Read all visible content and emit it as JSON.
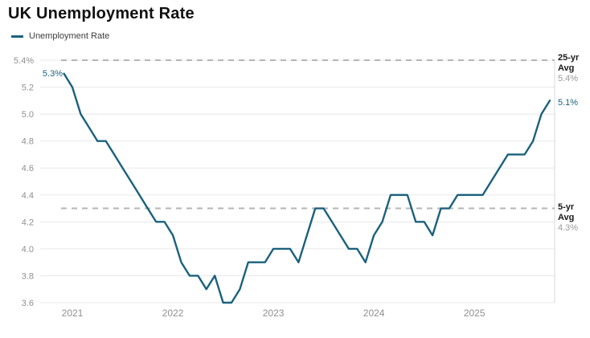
{
  "header": {
    "title": "UK Unemployment Rate"
  },
  "legend": {
    "label": "Unemployment Rate"
  },
  "colors": {
    "line": "#1a617e",
    "point_label": "#1a617e",
    "grid": "#e8e8e8",
    "dashed_reference": "#b5b5b5",
    "tick_text": "#8f8f8f",
    "plot_border": "#d9d9d9"
  },
  "annotations": {
    "start_point_label": "5.3%",
    "end_point_label": "5.1%",
    "avg25_line1": "25-yr",
    "avg25_line2": "Avg",
    "avg25_value": "5.4%",
    "avg5_line1": "5-yr",
    "avg5_line2": "Avg",
    "avg5_value": "4.3%"
  },
  "chart_data": {
    "type": "line",
    "title": "UK Unemployment Rate",
    "series_name": "Unemployment Rate",
    "unit": "%",
    "ylim": [
      3.6,
      5.4
    ],
    "grid": true,
    "legend_position": "top-left",
    "y_ticks": [
      5.4,
      5.2,
      5.0,
      4.8,
      4.6,
      4.4,
      4.2,
      4.0,
      3.8,
      3.6
    ],
    "y_tick_labels": [
      "5.4%",
      "5.2",
      "5.0",
      "4.8",
      "4.6",
      "4.4",
      "4.2",
      "4.0",
      "3.8",
      "3.6"
    ],
    "x_tick_labels": [
      "2021",
      "2022",
      "2023",
      "2024",
      "2025"
    ],
    "reference_lines": [
      {
        "name": "25-yr Avg",
        "value": 5.4
      },
      {
        "name": "5-yr Avg",
        "value": 4.3
      }
    ],
    "x": [
      "2020-12",
      "2021-01",
      "2021-02",
      "2021-03",
      "2021-04",
      "2021-05",
      "2021-06",
      "2021-07",
      "2021-08",
      "2021-09",
      "2021-10",
      "2021-11",
      "2021-12",
      "2022-01",
      "2022-02",
      "2022-03",
      "2022-04",
      "2022-05",
      "2022-06",
      "2022-07",
      "2022-08",
      "2022-09",
      "2022-10",
      "2022-11",
      "2022-12",
      "2023-01",
      "2023-02",
      "2023-03",
      "2023-04",
      "2023-05",
      "2023-06",
      "2023-07",
      "2023-08",
      "2023-09",
      "2023-10",
      "2023-11",
      "2023-12",
      "2024-01",
      "2024-02",
      "2024-03",
      "2024-04",
      "2024-05",
      "2024-06",
      "2024-07",
      "2024-08",
      "2024-09",
      "2024-10",
      "2024-11",
      "2024-12",
      "2025-01",
      "2025-02",
      "2025-03",
      "2025-04",
      "2025-05",
      "2025-06",
      "2025-07",
      "2025-08",
      "2025-09",
      "2025-10"
    ],
    "values": [
      5.3,
      5.2,
      5.0,
      4.9,
      4.8,
      4.8,
      4.7,
      4.6,
      4.5,
      4.4,
      4.3,
      4.2,
      4.2,
      4.1,
      3.9,
      3.8,
      3.8,
      3.7,
      3.8,
      3.6,
      3.6,
      3.7,
      3.9,
      3.9,
      3.9,
      4.0,
      4.0,
      4.0,
      3.9,
      4.1,
      4.3,
      4.3,
      4.2,
      4.1,
      4.0,
      4.0,
      3.9,
      4.1,
      4.2,
      4.4,
      4.4,
      4.4,
      4.2,
      4.2,
      4.1,
      4.3,
      4.3,
      4.4,
      4.4,
      4.4,
      4.4,
      4.5,
      4.6,
      4.7,
      4.7,
      4.7,
      4.8,
      5.0,
      5.1
    ]
  }
}
